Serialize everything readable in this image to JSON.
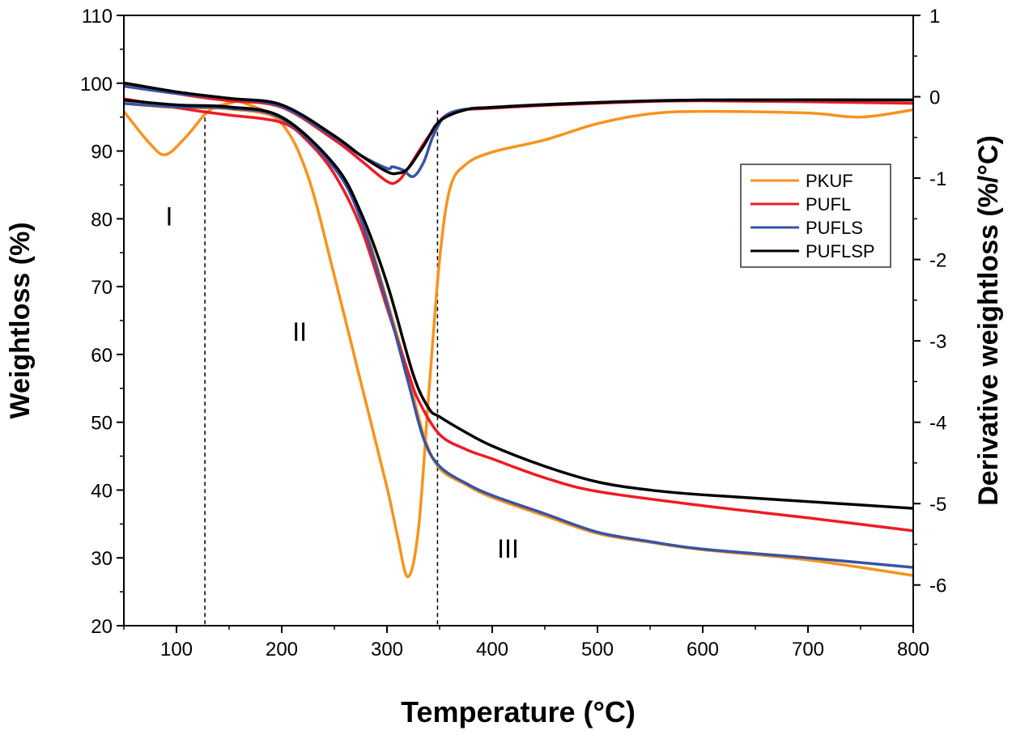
{
  "chart_data": {
    "type": "line",
    "xlabel": "Temperature (°C)",
    "ylabel": "Weightloss (%)",
    "y2label": "Derivative weightloss (%/°C)",
    "xlim": [
      50,
      800
    ],
    "ylim": [
      20,
      110
    ],
    "y2lim": [
      -6.5,
      1
    ],
    "xticks": [
      100,
      200,
      300,
      400,
      500,
      600,
      700,
      800
    ],
    "yticks": [
      20,
      30,
      40,
      50,
      60,
      70,
      80,
      90,
      100,
      110
    ],
    "y2ticks": [
      1,
      0,
      -1,
      -2,
      -3,
      -4,
      -5,
      -6
    ],
    "grid": false,
    "legend": {
      "placement": "right",
      "entries": [
        "PKUF",
        "PUFL",
        "PUFLS",
        "PUFLSP"
      ]
    },
    "colors": {
      "PKUF": "#f7931e",
      "PUFL": "#ed1c24",
      "PUFLS": "#3953a4",
      "PUFLSP": "#000000"
    },
    "vlines": [
      127,
      348
    ],
    "annotations": [
      {
        "text": "I",
        "x": 93,
        "y": 79
      },
      {
        "text": "II",
        "x": 217,
        "y": 62
      },
      {
        "text": "III",
        "x": 415,
        "y": 30
      }
    ],
    "series": [
      {
        "name": "PKUF",
        "kind": "TG",
        "axis": "left",
        "x": [
          50,
          100,
          150,
          200,
          250,
          275,
          300,
          320,
          335,
          350,
          375,
          400,
          450,
          500,
          550,
          600,
          700,
          800
        ],
        "y": [
          97,
          96.4,
          96.2,
          94.6,
          87.8,
          80.5,
          68,
          57,
          48,
          43.2,
          40.8,
          38.9,
          36.2,
          33.6,
          32.3,
          31.2,
          29.7,
          27.4
        ]
      },
      {
        "name": "PUFL",
        "kind": "TG",
        "axis": "left",
        "x": [
          50,
          100,
          125,
          150,
          200,
          225,
          250,
          275,
          300,
          320,
          330,
          350,
          375,
          400,
          450,
          500,
          600,
          700,
          800
        ],
        "y": [
          97.7,
          96.4,
          95.8,
          95.3,
          94.2,
          91.4,
          86.6,
          78.8,
          66.9,
          57.4,
          53.2,
          48.2,
          46,
          44.6,
          41.8,
          39.8,
          37.7,
          35.9,
          34
        ]
      },
      {
        "name": "PUFLS",
        "kind": "TG",
        "axis": "left",
        "x": [
          50,
          100,
          150,
          200,
          250,
          275,
          300,
          320,
          335,
          350,
          375,
          400,
          450,
          500,
          550,
          600,
          700,
          800
        ],
        "y": [
          97,
          96.5,
          96.3,
          94.8,
          87.5,
          80,
          67.5,
          56,
          47.5,
          43.5,
          41,
          39.2,
          36.5,
          33.8,
          32.4,
          31.3,
          30,
          28.6
        ]
      },
      {
        "name": "PUFLSP",
        "kind": "TG",
        "axis": "left",
        "x": [
          50,
          100,
          150,
          200,
          250,
          275,
          300,
          325,
          340,
          350,
          375,
          400,
          450,
          500,
          550,
          600,
          700,
          800
        ],
        "y": [
          97.5,
          96.8,
          96.5,
          95,
          88,
          81,
          70.5,
          57,
          52,
          50.8,
          48.5,
          46.5,
          43.5,
          41.2,
          40,
          39.3,
          38.3,
          37.3
        ]
      },
      {
        "name": "PKUF",
        "kind": "DTG",
        "axis": "right",
        "x": [
          50,
          75,
          90,
          110,
          130,
          150,
          165,
          200,
          225,
          250,
          275,
          300,
          310,
          320,
          330,
          340,
          350,
          360,
          375,
          400,
          450,
          500,
          550,
          600,
          700,
          750,
          800
        ],
        "y": [
          -0.18,
          -0.58,
          -0.71,
          -0.48,
          -0.18,
          -0.08,
          -0.08,
          -0.33,
          -0.98,
          -2.2,
          -3.5,
          -4.8,
          -5.4,
          -5.9,
          -5.3,
          -3.6,
          -2.0,
          -1.12,
          -0.83,
          -0.68,
          -0.53,
          -0.33,
          -0.21,
          -0.18,
          -0.2,
          -0.25,
          -0.16
        ]
      },
      {
        "name": "PUFL",
        "kind": "DTG",
        "axis": "right",
        "x": [
          50,
          100,
          125,
          150,
          200,
          250,
          275,
          300,
          310,
          320,
          340,
          360,
          400,
          500,
          600,
          800
        ],
        "y": [
          0.15,
          0.04,
          -0.01,
          -0.05,
          -0.13,
          -0.53,
          -0.78,
          -1.04,
          -1.04,
          -0.88,
          -0.48,
          -0.2,
          -0.14,
          -0.08,
          -0.05,
          -0.08
        ]
      },
      {
        "name": "PUFLS",
        "kind": "DTG",
        "axis": "right",
        "x": [
          50,
          100,
          150,
          200,
          250,
          275,
          300,
          305,
          315,
          325,
          335,
          345,
          360,
          400,
          500,
          600,
          800
        ],
        "y": [
          0.13,
          0.04,
          -0.02,
          -0.12,
          -0.5,
          -0.72,
          -0.88,
          -0.86,
          -0.9,
          -0.98,
          -0.8,
          -0.45,
          -0.2,
          -0.13,
          -0.07,
          -0.04,
          -0.04
        ]
      },
      {
        "name": "PUFLSP",
        "kind": "DTG",
        "axis": "right",
        "x": [
          50,
          100,
          150,
          200,
          250,
          275,
          300,
          310,
          320,
          335,
          350,
          375,
          400,
          500,
          600,
          800
        ],
        "y": [
          0.17,
          0.06,
          -0.02,
          -0.1,
          -0.48,
          -0.72,
          -0.92,
          -0.94,
          -0.88,
          -0.6,
          -0.3,
          -0.16,
          -0.13,
          -0.07,
          -0.04,
          -0.04
        ]
      }
    ]
  }
}
